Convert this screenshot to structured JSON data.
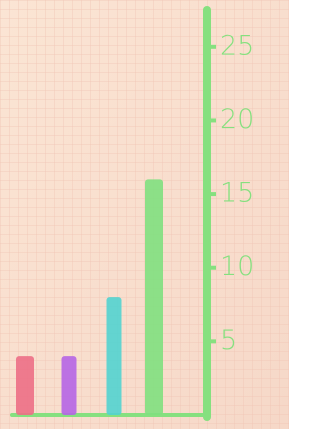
{
  "chart_data": {
    "type": "bar",
    "categories": [
      null,
      null,
      null,
      null
    ],
    "values": [
      4,
      4,
      8,
      16
    ],
    "colors": [
      "#ec6f86",
      "#b565e6",
      "#52d3d0",
      "#7fe07f"
    ],
    "axis_color": "#86e07f",
    "ylim": [
      0,
      27.5
    ],
    "yticks": [
      5,
      10,
      15,
      20,
      25
    ],
    "y_axis_side": "right"
  }
}
